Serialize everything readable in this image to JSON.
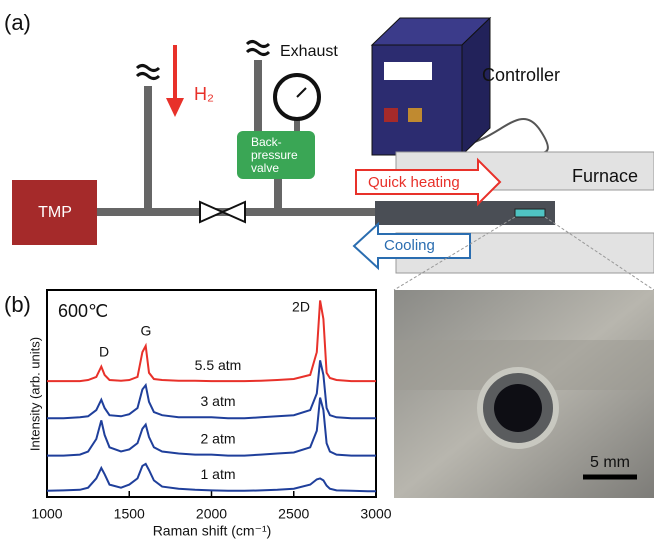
{
  "panel_a": {
    "label": "(a)",
    "tmp": "TMP",
    "h2": "H₂",
    "exhaust": "Exhaust",
    "controller": "Controller",
    "backpressure_valve": [
      "Back-",
      "pressure",
      "valve"
    ],
    "quick_heating": "Quick heating",
    "furnace": "Furnace",
    "cooling": "Cooling"
  },
  "panel_b": {
    "label": "(b)",
    "temperature": "600℃",
    "scale_bar": "5 mm"
  },
  "chart_data": {
    "type": "line",
    "xlabel": "Raman shift (cm⁻¹)",
    "ylabel": "Intensity (arb. units)",
    "peak_labels": [
      "D",
      "G",
      "2D"
    ],
    "x": [
      1000,
      1100,
      1200,
      1250,
      1300,
      1330,
      1350,
      1380,
      1450,
      1500,
      1550,
      1580,
      1600,
      1620,
      1650,
      1700,
      1800,
      1900,
      2000,
      2100,
      2200,
      2300,
      2400,
      2500,
      2600,
      2640,
      2660,
      2680,
      2700,
      2720,
      2760,
      2850,
      2950,
      3000
    ],
    "series": [
      {
        "name": "5.5 atm",
        "color": "#e8312a",
        "values": [
          5.6,
          5.6,
          5.6,
          5.65,
          5.8,
          6.3,
          5.9,
          5.65,
          5.62,
          5.65,
          5.8,
          7.0,
          7.3,
          6.0,
          5.7,
          5.65,
          5.62,
          5.62,
          5.6,
          5.6,
          5.6,
          5.62,
          5.65,
          5.7,
          5.9,
          7.0,
          9.5,
          8.6,
          6.0,
          5.75,
          5.65,
          5.6,
          5.6,
          5.6
        ]
      },
      {
        "name": "3 atm",
        "color": "#1f3f9b",
        "values": [
          3.8,
          3.8,
          3.85,
          3.9,
          4.2,
          4.7,
          4.3,
          3.95,
          3.9,
          4.0,
          4.3,
          5.2,
          5.4,
          4.6,
          4.1,
          3.95,
          3.85,
          3.85,
          3.85,
          3.8,
          3.8,
          3.85,
          3.9,
          3.95,
          4.2,
          5.0,
          6.6,
          5.9,
          4.3,
          3.95,
          3.85,
          3.8,
          3.8,
          3.8
        ]
      },
      {
        "name": "2 atm",
        "color": "#1f3f9b",
        "values": [
          2.0,
          2.0,
          2.05,
          2.2,
          2.8,
          3.7,
          3.0,
          2.4,
          2.2,
          2.3,
          2.6,
          3.3,
          3.5,
          2.9,
          2.4,
          2.2,
          2.1,
          2.05,
          2.05,
          2.0,
          2.0,
          2.05,
          2.1,
          2.15,
          2.4,
          3.2,
          4.8,
          4.2,
          2.6,
          2.2,
          2.05,
          2.0,
          2.0,
          2.0
        ]
      },
      {
        "name": "1 atm",
        "color": "#1f3f9b",
        "values": [
          0.3,
          0.32,
          0.35,
          0.45,
          0.9,
          1.4,
          1.1,
          0.6,
          0.45,
          0.6,
          0.9,
          1.5,
          1.6,
          1.3,
          0.8,
          0.5,
          0.4,
          0.35,
          0.32,
          0.3,
          0.3,
          0.32,
          0.35,
          0.4,
          0.6,
          0.85,
          0.9,
          0.8,
          0.55,
          0.4,
          0.32,
          0.3,
          0.28,
          0.28
        ]
      }
    ],
    "xlim": [
      1000,
      3000
    ],
    "xticks": [
      1000,
      1500,
      2000,
      2500,
      3000
    ],
    "ylim": [
      0,
      10
    ]
  }
}
